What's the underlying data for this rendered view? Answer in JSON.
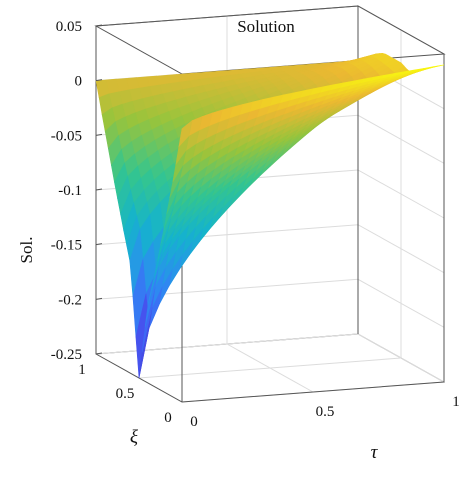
{
  "chart_data": {
    "type": "surface",
    "title": "Solution",
    "zlabel": "Sol.",
    "xlabel": "τ",
    "ylabel": "ξ",
    "x_ticks": [
      "0",
      "0.5",
      "1"
    ],
    "y_ticks": [
      "0",
      "0.5",
      "1"
    ],
    "z_ticks": [
      "-0.25",
      "-0.2",
      "-0.15",
      "-0.1",
      "-0.05",
      "0",
      "0.05"
    ],
    "xlim": [
      0,
      1
    ],
    "ylim": [
      0,
      1
    ],
    "zlim": [
      -0.25,
      0.05
    ],
    "colormap": "parula",
    "grid": true,
    "grid_x": [
      0,
      0.5,
      1
    ],
    "grid_y": [
      0,
      0.5,
      1
    ],
    "surface_samples": {
      "xi": [
        0,
        0.1,
        0.2,
        0.3,
        0.4,
        0.5,
        0.6,
        0.7,
        0.8,
        0.9,
        1.0
      ],
      "tau_0": [
        0.0,
        -0.05,
        -0.096,
        -0.14,
        -0.18,
        -0.25,
        -0.15,
        -0.115,
        -0.078,
        -0.039,
        0.0
      ],
      "tau_1": [
        0.04,
        0.034,
        0.028,
        0.022,
        0.016,
        0.02,
        0.02,
        0.02,
        0.015,
        0.007,
        0.0
      ]
    }
  }
}
